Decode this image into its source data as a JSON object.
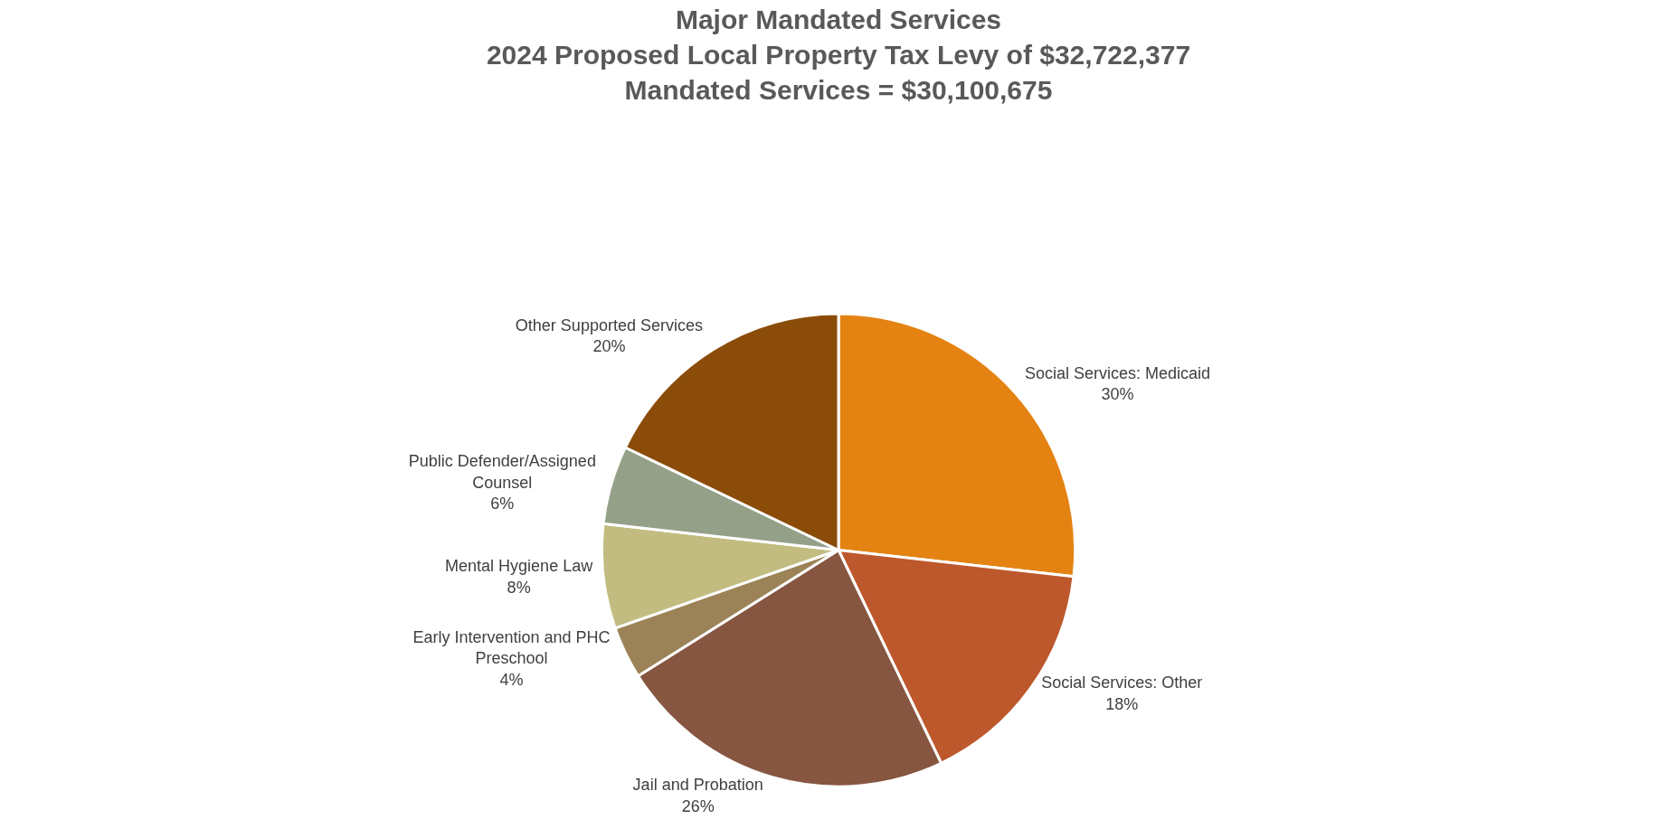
{
  "chart_data": {
    "type": "pie",
    "title": "Major Mandated Services\n2024 Proposed Local Property Tax Levy of $32,722,377\nMandated Services = $30,100,675",
    "categories": [
      "Social Services: Medicaid",
      "Social Services: Other",
      "Jail and Probation",
      "Early Intervention and PHC Preschool",
      "Mental Hygiene Law",
      "Public Defender/Assigned Counsel",
      "Other Supported Services"
    ],
    "values": [
      30,
      18,
      26,
      4,
      8,
      6,
      20
    ],
    "value_labels": [
      "30%",
      "18%",
      "26%",
      "4%",
      "8%",
      "6%",
      "20%"
    ],
    "colors": [
      "#e48312",
      "#bd582c",
      "#865640",
      "#9b8357",
      "#c2bc80",
      "#94a088",
      "#8b4c0a"
    ],
    "legend": false
  }
}
